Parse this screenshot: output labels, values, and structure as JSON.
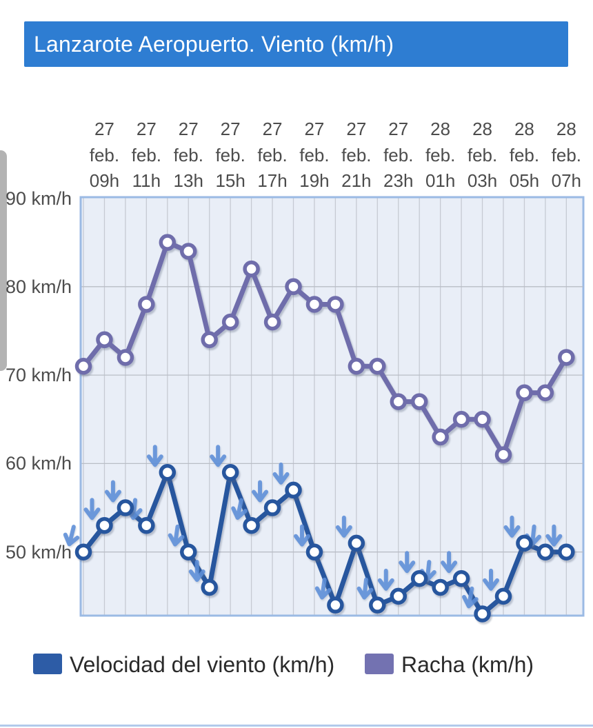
{
  "header": {
    "title": "Lanzarote Aeropuerto. Viento (km/h)",
    "bg_color": "#2e7dd2",
    "text_color": "#ffffff"
  },
  "y_axis": {
    "unit": "km/h",
    "tick_labels": [
      "90 km/h",
      "80 km/h",
      "70 km/h",
      "60 km/h",
      "50 km/h"
    ],
    "tick_values": [
      90,
      80,
      70,
      60,
      50
    ]
  },
  "x_axis": {
    "tick_labels": [
      {
        "day": "27",
        "month": "feb.",
        "hour": "09h"
      },
      {
        "day": "27",
        "month": "feb.",
        "hour": "11h"
      },
      {
        "day": "27",
        "month": "feb.",
        "hour": "13h"
      },
      {
        "day": "27",
        "month": "feb.",
        "hour": "15h"
      },
      {
        "day": "27",
        "month": "feb.",
        "hour": "17h"
      },
      {
        "day": "27",
        "month": "feb.",
        "hour": "19h"
      },
      {
        "day": "27",
        "month": "feb.",
        "hour": "21h"
      },
      {
        "day": "27",
        "month": "feb.",
        "hour": "23h"
      },
      {
        "day": "28",
        "month": "feb.",
        "hour": "01h"
      },
      {
        "day": "28",
        "month": "feb.",
        "hour": "03h"
      },
      {
        "day": "28",
        "month": "feb.",
        "hour": "05h"
      },
      {
        "day": "28",
        "month": "feb.",
        "hour": "07h"
      }
    ]
  },
  "chart_data": {
    "type": "line",
    "x": [
      "27 feb. 08h",
      "27 feb. 09h",
      "27 feb. 10h",
      "27 feb. 11h",
      "27 feb. 12h",
      "27 feb. 13h",
      "27 feb. 14h",
      "27 feb. 15h",
      "27 feb. 16h",
      "27 feb. 17h",
      "27 feb. 18h",
      "27 feb. 19h",
      "27 feb. 20h",
      "27 feb. 21h",
      "27 feb. 22h",
      "27 feb. 23h",
      "28 feb. 00h",
      "28 feb. 01h",
      "28 feb. 02h",
      "28 feb. 03h",
      "28 feb. 04h",
      "28 feb. 05h",
      "28 feb. 06h",
      "28 feb. 07h"
    ],
    "series": [
      {
        "name": "Velocidad del viento (km/h)",
        "color": "#27569e",
        "values": [
          50,
          53,
          55,
          53,
          59,
          50,
          46,
          59,
          53,
          55,
          57,
          50,
          44,
          51,
          44,
          45,
          47,
          46,
          47,
          43,
          45,
          51,
          50,
          50
        ]
      },
      {
        "name": "Racha (km/h)",
        "color": "#6f6dab",
        "values": [
          71,
          74,
          72,
          78,
          85,
          84,
          74,
          76,
          82,
          76,
          80,
          78,
          78,
          71,
          71,
          67,
          67,
          63,
          65,
          65,
          61,
          68,
          68,
          72
        ]
      }
    ],
    "wind_direction_arrows": {
      "color": "#5d8ed8",
      "angles_deg": [
        14,
        0,
        0,
        6,
        0,
        8,
        0,
        0,
        12,
        0,
        0,
        0,
        8,
        0,
        6,
        0,
        0,
        6,
        0,
        10,
        0,
        0,
        6,
        0
      ]
    },
    "ylim": [
      42.8,
      90
    ],
    "grid": true,
    "legend_position": "bottom",
    "title": "Lanzarote Aeropuerto. Viento (km/h)"
  },
  "legend": {
    "items": [
      {
        "label": "Velocidad del viento (km/h)",
        "color": "#2d5ca6"
      },
      {
        "label": "Racha (km/h)",
        "color": "#7372b1"
      }
    ]
  },
  "colors": {
    "plot_bg": "#e9eef7",
    "plot_border": "#9bbae4",
    "vgrid": "#c6cad3",
    "hgrid": "#b9bdc6",
    "axis_text": "#4c4c4c",
    "scrollbar": "#b3b3b3"
  }
}
